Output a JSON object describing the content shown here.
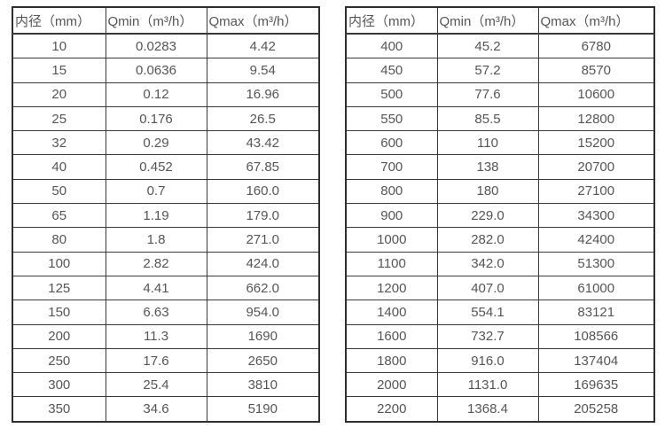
{
  "page": {
    "background_color": "#ffffff",
    "text_color": "#555555",
    "border_color": "#2e2e2e"
  },
  "tables": [
    {
      "name": "flow-table-small-diameters",
      "headers": [
        "内径（mm）",
        "Qmin（m³/h）",
        "Qmax（m³/h）"
      ],
      "rows": [
        [
          "10",
          "0.0283",
          "4.42"
        ],
        [
          "15",
          "0.0636",
          "9.54"
        ],
        [
          "20",
          "0.12",
          "16.96"
        ],
        [
          "25",
          "0.176",
          "26.5"
        ],
        [
          "32",
          "0.29",
          "43.42"
        ],
        [
          "40",
          "0.452",
          "67.85"
        ],
        [
          "50",
          "0.7",
          "160.0"
        ],
        [
          "65",
          "1.19",
          "179.0"
        ],
        [
          "80",
          "1.8",
          "271.0"
        ],
        [
          "100",
          "2.82",
          "424.0"
        ],
        [
          "125",
          "4.41",
          "662.0"
        ],
        [
          "150",
          "6.63",
          "954.0"
        ],
        [
          "200",
          "11.3",
          "1690"
        ],
        [
          "250",
          "17.6",
          "2650"
        ],
        [
          "300",
          "25.4",
          "3810"
        ],
        [
          "350",
          "34.6",
          "5190"
        ]
      ]
    },
    {
      "name": "flow-table-large-diameters",
      "headers": [
        "内径（mm）",
        "Qmin（m³/h）",
        "Qmax（m³/h）"
      ],
      "rows": [
        [
          "400",
          "45.2",
          "6780"
        ],
        [
          "450",
          "57.2",
          "8570"
        ],
        [
          "500",
          "77.6",
          "10600"
        ],
        [
          "550",
          "85.5",
          "12800"
        ],
        [
          "600",
          "110",
          "15200"
        ],
        [
          "700",
          "138",
          "20700"
        ],
        [
          "800",
          "180",
          "27100"
        ],
        [
          "900",
          "229.0",
          "34300"
        ],
        [
          "1000",
          "282.0",
          "42400"
        ],
        [
          "1100",
          "342.0",
          "51300"
        ],
        [
          "1200",
          "407.0",
          "61000"
        ],
        [
          "1400",
          "554.1",
          "83121"
        ],
        [
          "1600",
          "732.7",
          "108566"
        ],
        [
          "1800",
          "916.0",
          "137404"
        ],
        [
          "2000",
          "1131.0",
          "169635"
        ],
        [
          "2200",
          "1368.4",
          "205258"
        ]
      ]
    }
  ]
}
